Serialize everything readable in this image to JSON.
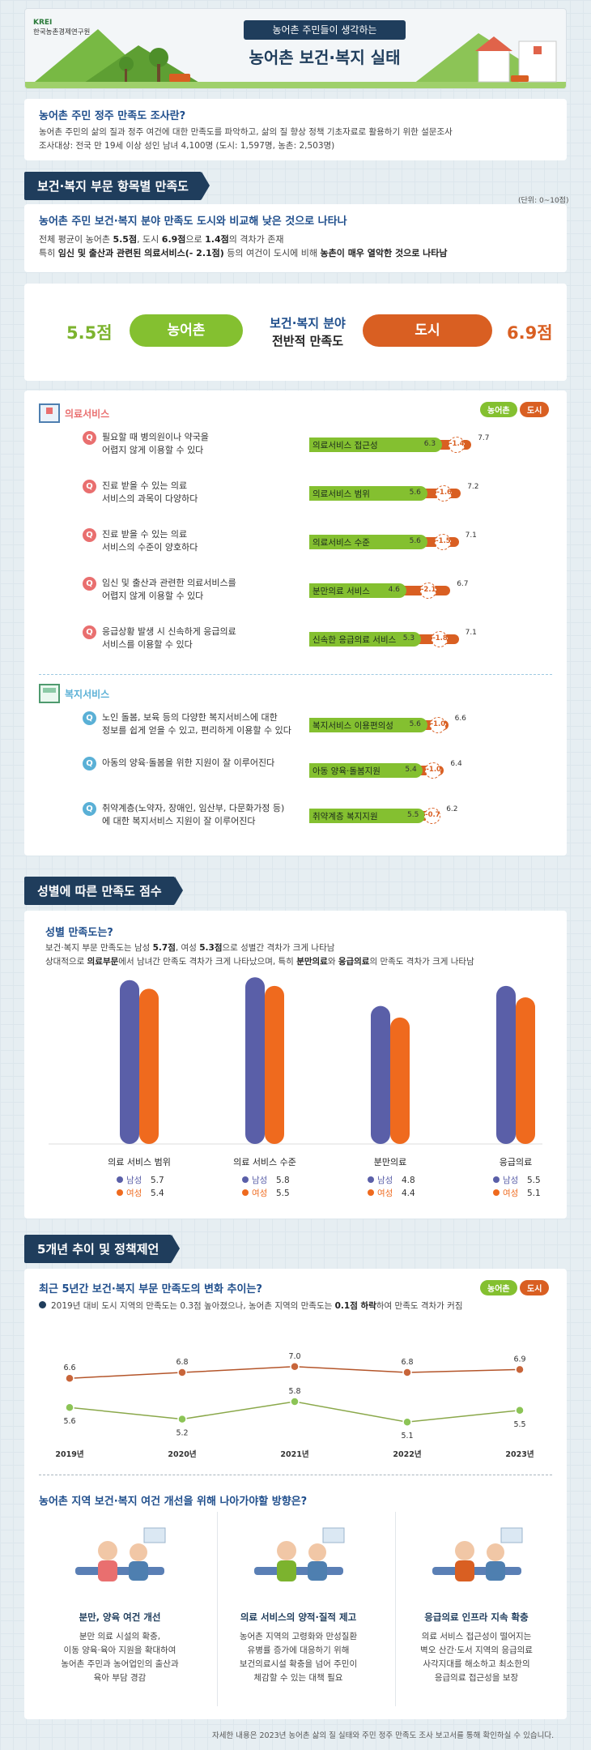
{
  "header": {
    "org_short": "KREI",
    "org_name": "한국농촌경제연구원",
    "subtitle": "농어촌 주민들이 생각하는",
    "title": "농어촌 보건·복지 실태"
  },
  "intro": {
    "heading": "농어촌 주민 정주 만족도 조사란?",
    "line1": "농어촌 주민의 삶의 질과 정주 여건에 대한 만족도를 파악하고, 삶의 질 향상 정책 기초자료로 활용하기 위한 설문조사",
    "line2": "조사대상: 전국 만 19세 이상 성인 남녀 4,100명 (도시: 1,597명, 농촌: 2,503명)"
  },
  "section1": {
    "title": "보건·복지 부문 항목별 만족도",
    "unit": "(단위: 0~10점)",
    "heading": "농어촌 주민 보건·복지 분야 만족도 도시와 비교해 낮은 것으로 나타나",
    "line1_a": "전체 평균이 농어촌 ",
    "line1_b": "5.5점",
    "line1_c": ", 도시 ",
    "line1_d": "6.9점",
    "line1_e": "으로 ",
    "line1_f": "1.4점",
    "line1_g": "의 격차가 존재",
    "line2_a": "특히 ",
    "line2_b": "임신 및 출산과 관련된 의료서비스(- 2.1점)",
    "line2_c": " 등의 여건이 도시에 비해 ",
    "line2_d": "농촌이 매우 열악한 것으로 나타남"
  },
  "overall": {
    "rural_score": "5.5점",
    "rural_label": "농어촌",
    "center_1": "보건·복지 분야",
    "center_2": "전반적 만족도",
    "city_label": "도시",
    "city_score": "6.9점"
  },
  "legend": {
    "rural": "농어촌",
    "city": "도시"
  },
  "colors": {
    "rural": "#84c030",
    "city": "#d95f22",
    "navy": "#1f3d5c"
  },
  "medical": {
    "title": "의료서비스",
    "items": [
      {
        "q1": "필요할 때 병의원이나 약국을",
        "q2": "어렵지 않게 이용할 수 있다",
        "label": "의료서비스 접근성",
        "rural": 6.3,
        "city": 7.7,
        "gap": "-1.4",
        "rural_txt": "6.3",
        "city_txt": "7.7"
      },
      {
        "q1": "진료 받을 수 있는 의료",
        "q2": "서비스의 과목이 다양하다",
        "label": "의료서비스 범위",
        "rural": 5.6,
        "city": 7.2,
        "gap": "-1.6",
        "rural_txt": "5.6",
        "city_txt": "7.2"
      },
      {
        "q1": "진료 받을 수 있는 의료",
        "q2": "서비스의 수준이 양호하다",
        "label": "의료서비스 수준",
        "rural": 5.6,
        "city": 7.1,
        "gap": "-1.5",
        "rural_txt": "5.6",
        "city_txt": "7.1"
      },
      {
        "q1": "임신 및 출산과 관련한 의료서비스를",
        "q2": "어렵지 않게 이용할 수 있다",
        "label": "분만의료 서비스",
        "rural": 4.6,
        "city": 6.7,
        "gap": "-2.1",
        "rural_txt": "4.6",
        "city_txt": "6.7"
      },
      {
        "q1": "응급상황 발생 시 신속하게 응급의료",
        "q2": "서비스를 이용할 수 있다",
        "label": "신속한 응급의료 서비스",
        "rural": 5.3,
        "city": 7.1,
        "gap": "-1.8",
        "rural_txt": "5.3",
        "city_txt": "7.1"
      }
    ]
  },
  "welfare": {
    "title": "복지서비스",
    "items": [
      {
        "q1": "노인 돌봄, 보육 등의 다양한 복지서비스에 대한",
        "q2": "정보를 쉽게 얻을 수 있고, 편리하게 이용할 수 있다",
        "label": "복지서비스 이용편의성",
        "rural": 5.6,
        "city": 6.6,
        "gap": "-1.0",
        "rural_txt": "5.6",
        "city_txt": "6.6"
      },
      {
        "q1": "아동의 양육·돌봄을 위한 지원이 잘 이루어진다",
        "q2": "",
        "label": "아동 양육·돌봄지원",
        "rural": 5.4,
        "city": 6.4,
        "gap": "-1.0",
        "rural_txt": "5.4",
        "city_txt": "6.4"
      },
      {
        "q1": "취약계층(노약자, 장애인, 임산부, 다문화가정 등)",
        "q2": "에 대한 복지서비스 지원이 잘 이루어진다",
        "label": "취약계층 복지지원",
        "rural": 5.5,
        "city": 6.2,
        "gap": "-0.7",
        "rural_txt": "5.5",
        "city_txt": "6.2"
      }
    ]
  },
  "section2": {
    "title": "성별에 따른 만족도 점수",
    "heading": "성별 만족도는?",
    "line1_a": "보건·복지 부문 만족도는 남성 ",
    "line1_b": "5.7점",
    "line1_c": ", 여성 ",
    "line1_d": "5.3점",
    "line1_e": "으로 성별간 격차가 크게 나타남",
    "line2_a": "상대적으로 ",
    "line2_b": "의료부문",
    "line2_c": "에서 남녀간 만족도 격차가 크게 나타났으며, 특히 ",
    "line2_d": "분만의료",
    "line2_e": "와 ",
    "line2_f": "응급의료",
    "line2_g": "의 만족도 격차가 크게 나타남"
  },
  "chart_data": [
    {
      "type": "bar",
      "categories": [
        "의료 서비스 범위",
        "의료 서비스 수준",
        "분만의료",
        "응급의료"
      ],
      "series": [
        {
          "name": "남성",
          "values": [
            5.7,
            5.8,
            4.8,
            5.5
          ]
        },
        {
          "name": "여성",
          "values": [
            5.4,
            5.5,
            4.4,
            5.1
          ]
        }
      ],
      "value_labels": {
        "male": [
          "5.7",
          "5.8",
          "4.8",
          "5.5"
        ],
        "female": [
          "5.4",
          "5.5",
          "4.4",
          "5.1"
        ]
      },
      "colors": [
        "#5a5fa8",
        "#ef6a1e"
      ]
    },
    {
      "type": "line",
      "x": [
        "2019년",
        "2020년",
        "2021년",
        "2022년",
        "2023년"
      ],
      "series": [
        {
          "name": "도시",
          "values": [
            6.6,
            6.8,
            7.0,
            6.8,
            6.9
          ]
        },
        {
          "name": "농어촌",
          "values": [
            5.6,
            5.2,
            5.8,
            5.1,
            5.5
          ]
        }
      ],
      "colors": [
        "#b4552a",
        "#8aa84a"
      ]
    }
  ],
  "section3": {
    "title": "5개년 추이 및 정책제언",
    "heading": "최근 5년간 보건·복지 부문 만족도의 변화 추이는?",
    "note_a": "2019년 대비 도시 지역의 만족도는 0.3점 높아졌으나, 농어촌 지역의 만족도는 ",
    "note_b": "0.1점 하락",
    "note_c": "하여 만족도 격차가 커짐",
    "policy_heading": "농어촌 지역 보건·복지 여건 개선을 위해 나아가야할 방향은?",
    "policies": [
      {
        "title": "분만, 양육 여건 개선",
        "l1": "분만 의료 시설의 확충,",
        "l2": "이동 양육·육아 지원을 확대하여",
        "l3": "농어촌 주민과 농어업인의 출산과",
        "l4": "육아 부담 경감"
      },
      {
        "title": "의료 서비스의 양적·질적 제고",
        "l1": "농어촌 지역의 고령화와 만성질환",
        "l2": "유병률 증가에 대응하기 위해",
        "l3": "보건의료시설 확충을 넘어 주민이",
        "l4": "체감할 수 있는 대책 필요"
      },
      {
        "title": "응급의료 인프라 지속 확충",
        "l1": "의료 서비스 접근성이 떨어지는",
        "l2": "벽오 산간·도서 지역의 응급의료",
        "l3": "사각지대를 해소하고 최소한의",
        "l4": "응급의료 접근성을 보장"
      }
    ]
  },
  "footer": "자세한 내용은 2023년 농어촌 삶의 질 실태와 주민 정주 만족도 조사 보고서를 통해 확인하실 수 있습니다."
}
